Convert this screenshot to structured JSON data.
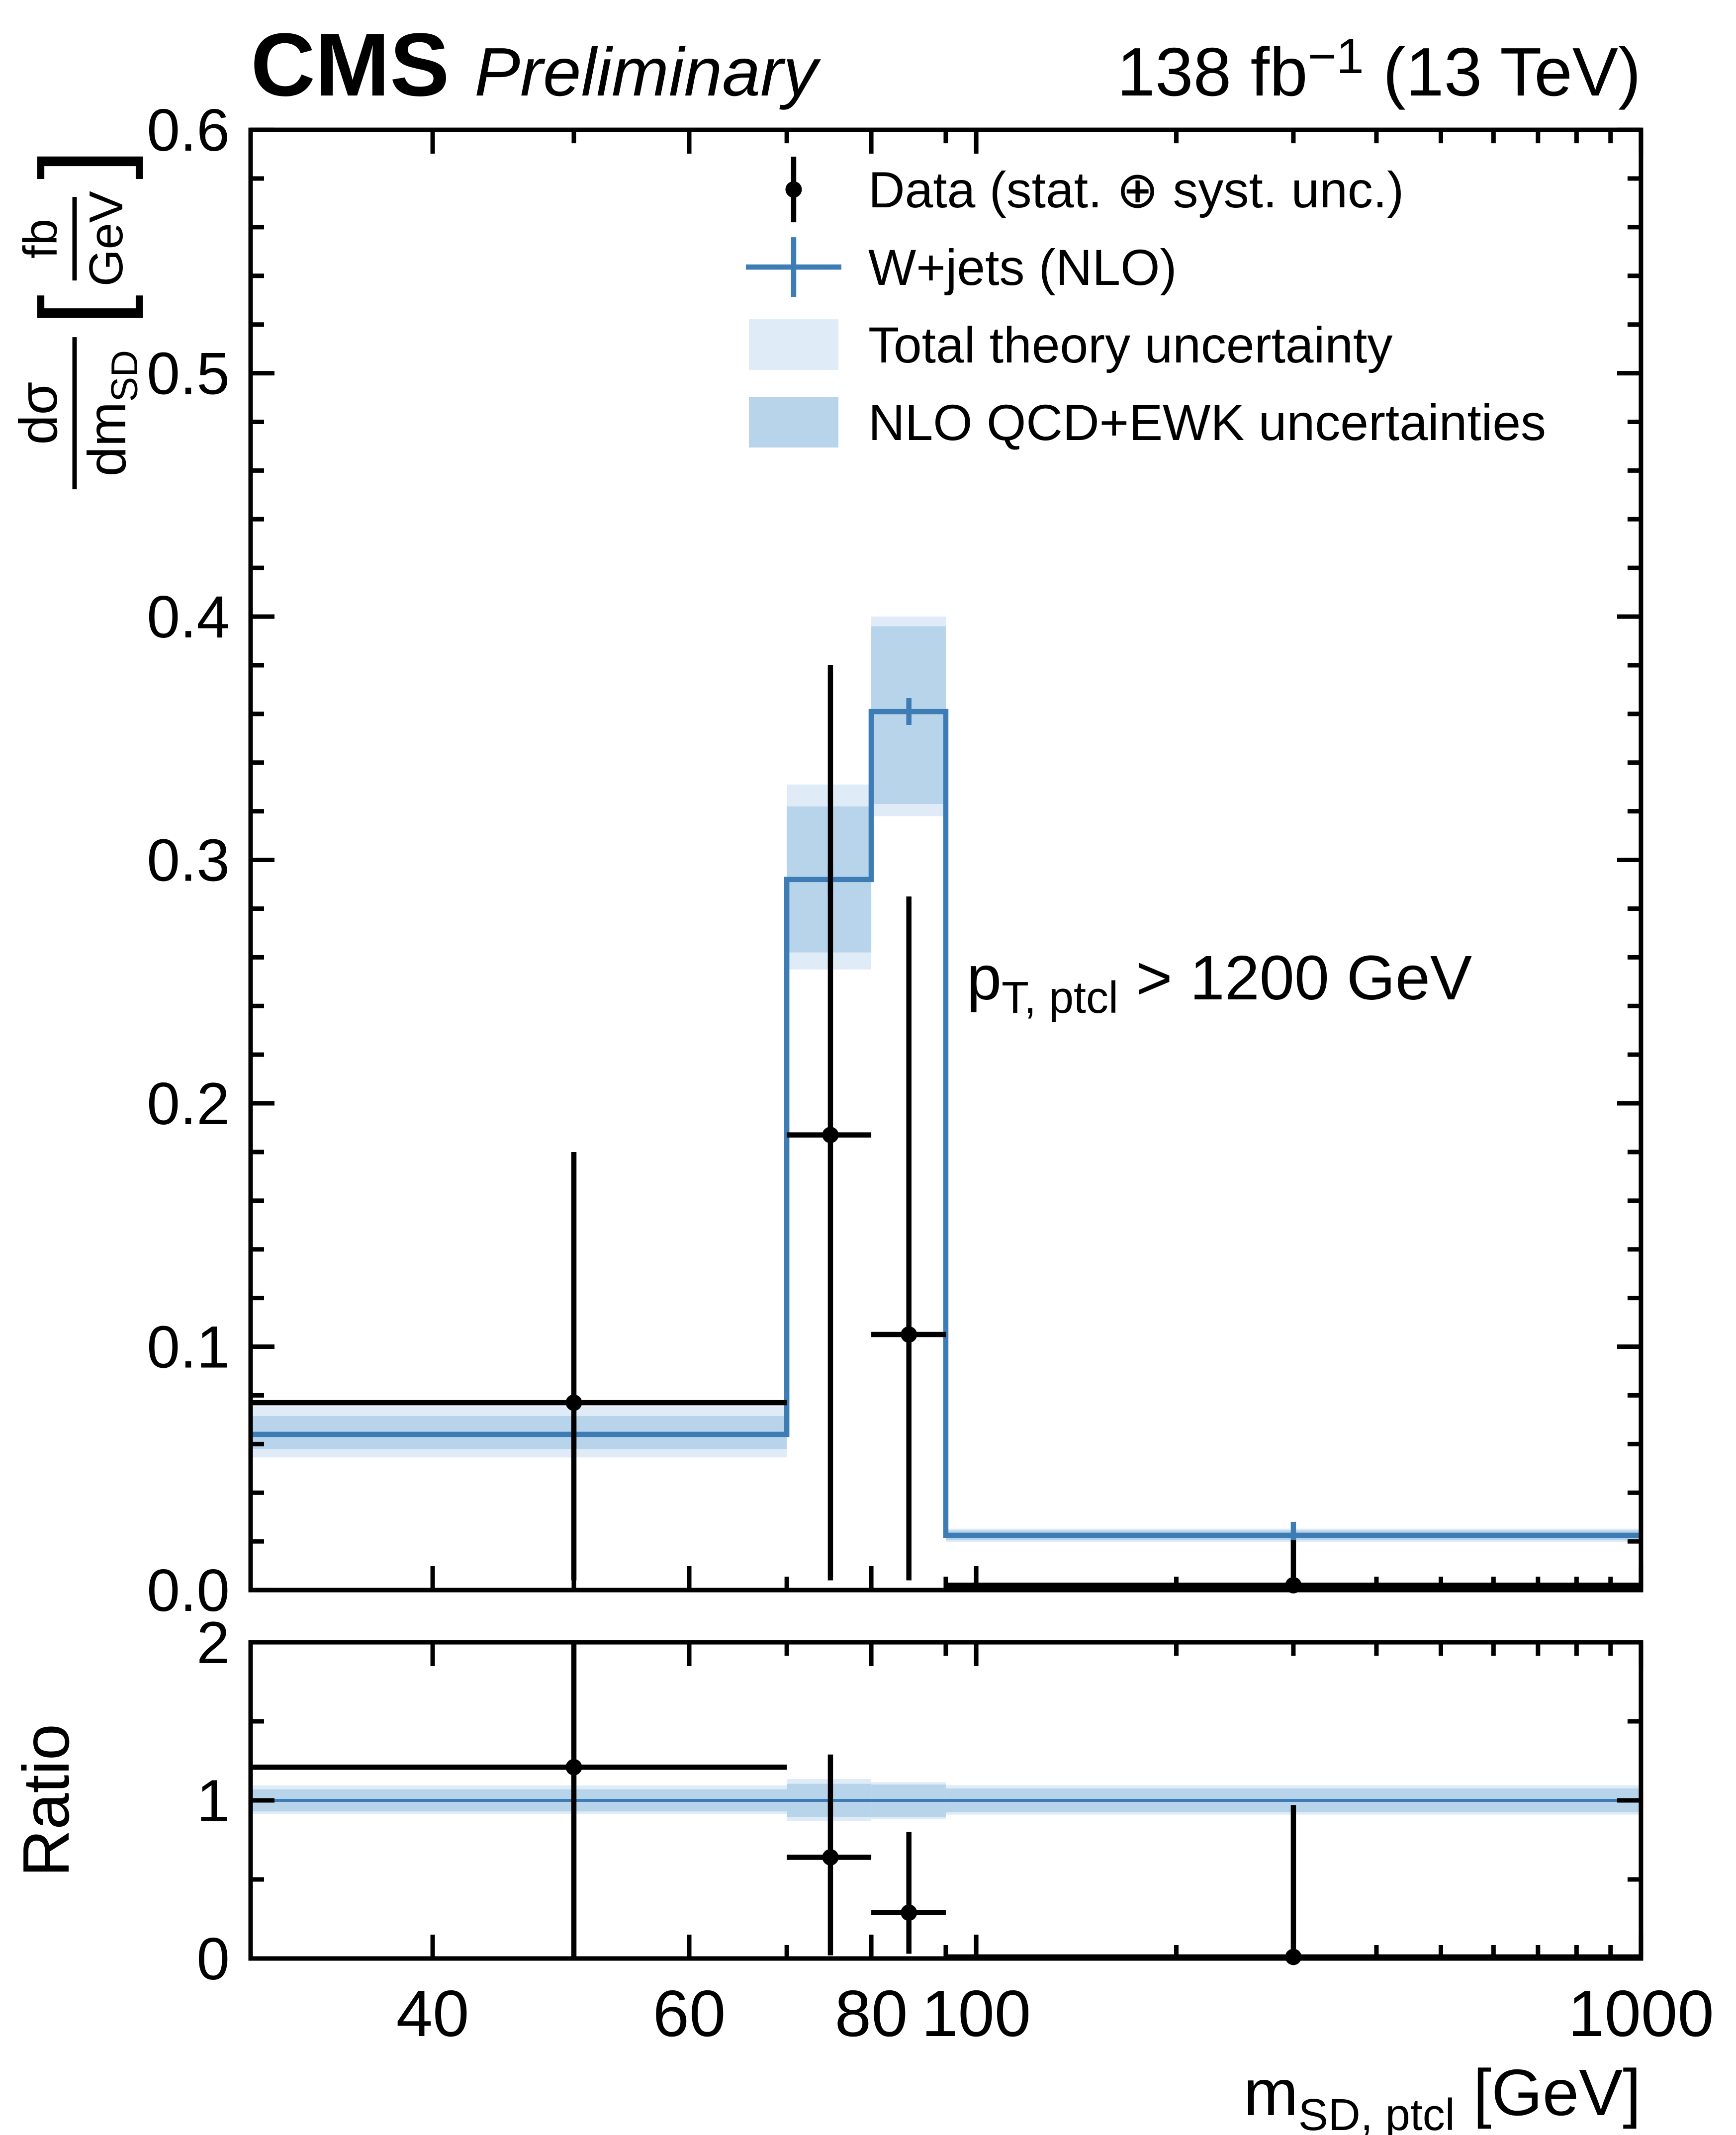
{
  "header": {
    "cms": "CMS",
    "preliminary": "Preliminary",
    "lumi_main": "138 fb",
    "lumi_sup": "−1",
    "lumi_rest": " (13 TeV)"
  },
  "legend": {
    "items": [
      {
        "label": "Data (stat. ⊕ syst. unc.)",
        "marker": "black-point-with-error-bar"
      },
      {
        "label": "W+jets (NLO)",
        "marker": "blue-cross"
      },
      {
        "label": "Total theory uncertainty",
        "marker": "light-blue-box"
      },
      {
        "label": "NLO QCD+EWK uncertainties",
        "marker": "blue-box"
      }
    ]
  },
  "annotation": {
    "prefix": "p",
    "sub": "T, ptcl",
    "rest": " > 1200 GeV"
  },
  "axes": {
    "x": {
      "title_main": "m",
      "title_sub": "SD, ptcl",
      "title_rest": " [GeV]",
      "range": [
        30,
        1000
      ],
      "scale": "log-with-compressed-last-bin",
      "break_value": 90,
      "break_frac": 0.5,
      "major_ticks": [
        {
          "value": 40,
          "label": "40"
        },
        {
          "value": 60,
          "label": "60"
        },
        {
          "value": 80,
          "label": "80"
        },
        {
          "value": 100,
          "label": "100"
        },
        {
          "value": 1000,
          "label": "1000"
        }
      ],
      "minor_ticks": [
        50,
        70,
        90,
        200,
        300,
        400,
        500,
        600,
        700,
        800,
        900
      ]
    },
    "y_main": {
      "title_numerator": "dσ",
      "title_denominator_main": "dm",
      "title_denominator_sub": "SD",
      "unit_bracket_open": "[",
      "unit_numerator": "fb",
      "unit_denominator": "GeV",
      "unit_bracket_close": "]",
      "range": [
        0,
        0.6
      ],
      "major_ticks": [
        {
          "value": 0.0,
          "label": "0.0"
        },
        {
          "value": 0.1,
          "label": "0.1"
        },
        {
          "value": 0.2,
          "label": "0.2"
        },
        {
          "value": 0.3,
          "label": "0.3"
        },
        {
          "value": 0.4,
          "label": "0.4"
        },
        {
          "value": 0.5,
          "label": "0.5"
        },
        {
          "value": 0.6,
          "label": "0.6"
        }
      ],
      "minor_step": 0.02
    },
    "y_ratio": {
      "title": "Ratio",
      "range": [
        0,
        2
      ],
      "major_ticks": [
        {
          "value": 0,
          "label": "0"
        },
        {
          "value": 1,
          "label": "1"
        },
        {
          "value": 2,
          "label": "2"
        }
      ],
      "minor_step": 0.5
    }
  },
  "colors": {
    "line_blue": "#3e7cb5",
    "band_total": "#dfecf7",
    "band_qcdewk": "#b7d4ea",
    "black": "#000000"
  },
  "chart_data": {
    "type": "bar",
    "subtype": "step-histogram-with-uncertainty-bands-and-ratio-panel",
    "title": "CMS Preliminary  138 fb−1 (13 TeV)",
    "xlabel": "mSD,ptcl [GeV]",
    "ylabel": "dσ/dmSD [fb/GeV]",
    "ratio_ylabel": "Ratio",
    "selection": "pT,ptcl > 1200 GeV",
    "xlim": [
      30,
      1000
    ],
    "ylim_main": [
      0,
      0.6
    ],
    "ylim_ratio": [
      0,
      2
    ],
    "bin_edges": [
      30,
      70,
      80,
      90,
      1000
    ],
    "bin_centers": [
      50,
      75,
      84.9,
      300
    ],
    "series": [
      {
        "name": "W+jets (NLO)",
        "type": "step",
        "values": [
          0.064,
          0.292,
          0.361,
          0.0225
        ]
      },
      {
        "name": "Total theory uncertainty",
        "type": "band",
        "low": [
          0.0545,
          0.255,
          0.318,
          0.0198
        ],
        "high": [
          0.0755,
          0.331,
          0.4,
          0.0252
        ]
      },
      {
        "name": "NLO QCD+EWK uncertainties",
        "type": "band",
        "low": [
          0.058,
          0.262,
          0.323,
          0.0205
        ],
        "high": [
          0.0715,
          0.322,
          0.396,
          0.0245
        ]
      },
      {
        "name": "Data (stat. ⊕ syst. unc.)",
        "type": "points",
        "x": [
          50,
          75,
          84.9,
          300
        ],
        "y": [
          0.077,
          0.187,
          0.105,
          0.002
        ],
        "y_up": [
          0.18,
          0.38,
          0.285,
          0.0205
        ],
        "y_down": [
          0.004,
          0.004,
          0.004,
          0.0005
        ]
      }
    ],
    "ratio": {
      "points": [
        1.21,
        0.64,
        0.29,
        0.01
      ],
      "up": [
        2.0,
        1.29,
        0.8,
        0.97
      ],
      "down": [
        0.0,
        0.02,
        0.03,
        0.0
      ],
      "total_band_low": [
        0.915,
        0.87,
        0.88,
        0.91
      ],
      "total_band_high": [
        1.095,
        1.135,
        1.115,
        1.095
      ],
      "qcdewk_band_low": [
        0.93,
        0.895,
        0.895,
        0.925
      ],
      "qcdewk_band_high": [
        1.07,
        1.105,
        1.1,
        1.075
      ]
    }
  }
}
